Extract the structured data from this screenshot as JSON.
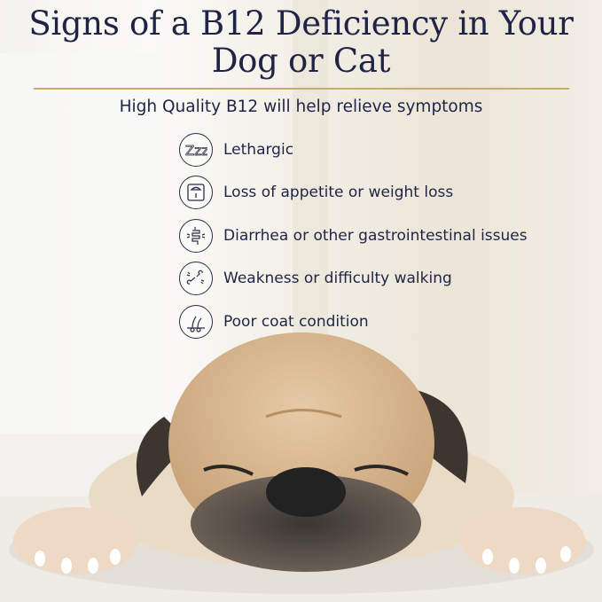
{
  "title": {
    "line1": "Signs of a B12 Deficiency in Your",
    "line2": "Dog or Cat"
  },
  "subtitle": "High Quality B12 will help relieve symptoms",
  "accent_color": "#c9a86a",
  "text_color": "#1f2447",
  "symptoms": [
    {
      "icon": "sleep-zzz-icon",
      "label": "Lethargic"
    },
    {
      "icon": "scale-icon",
      "label": "Loss of appetite or weight loss"
    },
    {
      "icon": "intestines-icon",
      "label": "Diarrhea or other gastrointestinal issues"
    },
    {
      "icon": "broken-bone-icon",
      "label": "Weakness or difficulty walking"
    },
    {
      "icon": "hair-follicle-icon",
      "label": "Poor coat condition"
    }
  ]
}
